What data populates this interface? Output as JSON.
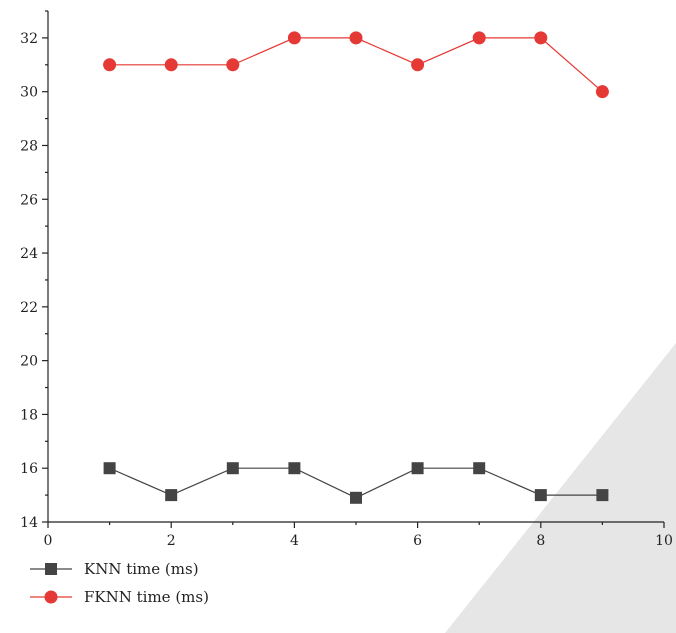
{
  "chart_data": {
    "type": "line",
    "title": "",
    "xlabel": "",
    "ylabel": "",
    "xlim": [
      0,
      10
    ],
    "ylim": [
      14,
      33
    ],
    "x_ticks": [
      0,
      2,
      4,
      6,
      8,
      10
    ],
    "y_ticks": [
      14,
      16,
      18,
      20,
      22,
      24,
      26,
      28,
      30,
      32
    ],
    "grid": false,
    "legend_position": "bottom-left",
    "x": [
      1,
      2,
      3,
      4,
      5,
      6,
      7,
      8,
      9
    ],
    "series": [
      {
        "name": "KNN time (ms)",
        "marker": "square",
        "color": "#444444",
        "values": [
          16,
          15,
          16,
          16,
          14.9,
          16,
          16,
          15,
          15
        ]
      },
      {
        "name": "FKNN time (ms)",
        "marker": "circle",
        "color": "#e53935",
        "values": [
          31,
          31,
          31,
          32,
          32,
          31,
          32,
          32,
          30
        ]
      }
    ]
  }
}
